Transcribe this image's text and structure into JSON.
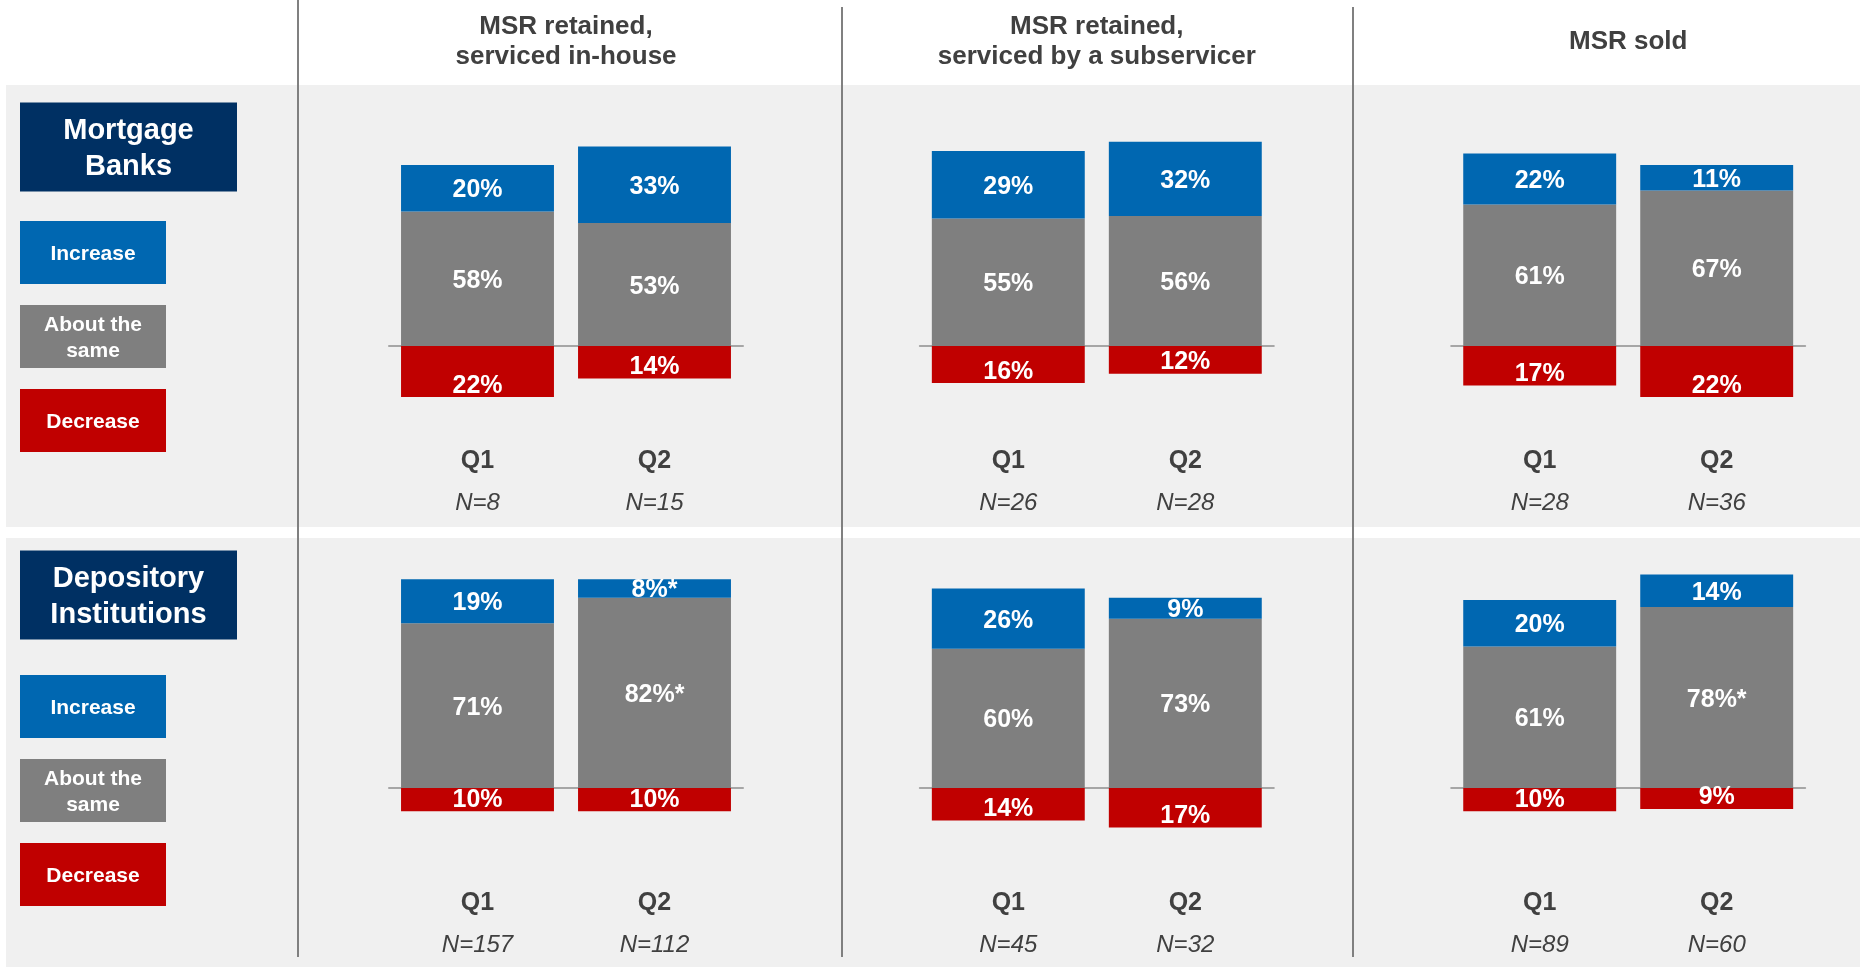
{
  "chart_data": [
    {
      "type": "bar",
      "title": "MSR retained,\nserviced in-house",
      "legend_title": "Mortgage Banks",
      "legend": "left",
      "stacked": true,
      "tick_labels": "x",
      "categories": [
        "Q1\nN=8",
        "Q2\nN=15"
      ],
      "series": [
        {
          "name": "Decrease",
          "color": "#c00000",
          "values": [
            -22,
            -14
          ]
        },
        {
          "name": "About the same",
          "color": "#7f7f7f",
          "values": [
            58,
            53
          ],
          "value_labels": [
            "58%",
            "53%"
          ]
        },
        {
          "name": "Increase",
          "color": "#0067b1",
          "values": [
            20,
            33
          ],
          "value_labels": [
            "20%",
            "33%"
          ]
        }
      ],
      "annotations": [
        {
          "text": "22%",
          "x": "Q1\nN=8",
          "y": -22
        },
        {
          "text": "14%",
          "x": "Q2\nN=15",
          "y": -14
        }
      ]
    },
    {
      "type": "bar",
      "title": "MSR retained,\nserviced by a subservicer",
      "stacked": true,
      "tick_labels": "x",
      "categories": [
        "Q1\nN=26",
        "Q2\nN=28"
      ],
      "series": [
        {
          "color": "#c00000",
          "values": [
            -16,
            -12
          ]
        },
        {
          "color": "#7f7f7f",
          "values": [
            55,
            56
          ],
          "value_labels": [
            "55%",
            "56%"
          ]
        },
        {
          "color": "#0067b1",
          "values": [
            29,
            32
          ],
          "value_labels": [
            "29%",
            "32%"
          ]
        }
      ],
      "annotations": [
        {
          "text": "16%",
          "x": "Q1\nN=26",
          "y": -16
        },
        {
          "text": "12%",
          "x": "Q2\nN=28",
          "y": -12
        }
      ]
    },
    {
      "type": "bar",
      "title": "MSR sold",
      "stacked": true,
      "tick_labels": "x",
      "categories": [
        "Q1\nN=28",
        "Q2\nN=36"
      ],
      "series": [
        {
          "color": "#c00000",
          "values": [
            -17,
            -22
          ]
        },
        {
          "color": "#7f7f7f",
          "values": [
            61,
            67
          ],
          "value_labels": [
            "61%",
            "67%"
          ]
        },
        {
          "color": "#0067b1",
          "values": [
            22,
            11
          ],
          "value_labels": [
            "22%",
            "11%"
          ]
        }
      ],
      "annotations": [
        {
          "text": "17%",
          "x": "Q1\nN=28",
          "y": -17
        },
        {
          "text": "22%",
          "x": "Q2\nN=36",
          "y": -22
        }
      ]
    },
    {
      "type": "bar",
      "legend_title": "Depository Institutions",
      "legend": "left",
      "stacked": true,
      "tick_labels": "x",
      "categories": [
        "Q1\nN=157",
        "Q2\nN=112"
      ],
      "series": [
        {
          "name": "Decrease",
          "color": "#c00000",
          "values": [
            -10,
            -10
          ]
        },
        {
          "name": "About the same",
          "color": "#7f7f7f",
          "values": [
            71,
            82
          ],
          "value_labels": [
            "71%",
            "82%*"
          ]
        },
        {
          "name": "Increase",
          "color": "#0067b1",
          "values": [
            19,
            8
          ],
          "value_labels": [
            "19%",
            "8%*"
          ]
        }
      ],
      "annotations": [
        {
          "text": "10%",
          "x": "Q1\nN=157",
          "y": -10
        },
        {
          "text": "10%",
          "x": "Q2\nN=112",
          "y": -10
        }
      ]
    },
    {
      "type": "bar",
      "stacked": true,
      "tick_labels": "x",
      "categories": [
        "Q1\nN=45",
        "Q2\nN=32"
      ],
      "series": [
        {
          "color": "#c00000",
          "values": [
            -14,
            -17
          ]
        },
        {
          "color": "#7f7f7f",
          "values": [
            60,
            73
          ],
          "value_labels": [
            "60%",
            "73%"
          ]
        },
        {
          "color": "#0067b1",
          "values": [
            26,
            9
          ],
          "value_labels": [
            "26%",
            "9%"
          ]
        }
      ],
      "annotations": [
        {
          "text": "14%",
          "x": "Q1\nN=45",
          "y": -14
        },
        {
          "text": "17%",
          "x": "Q2\nN=32",
          "y": -17
        }
      ]
    },
    {
      "type": "bar",
      "stacked": true,
      "tick_labels": "x",
      "categories": [
        "Q1\nN=89",
        "Q2\nN=60"
      ],
      "series": [
        {
          "color": "#c00000",
          "values": [
            -10,
            -9
          ]
        },
        {
          "color": "#7f7f7f",
          "values": [
            61,
            78
          ],
          "value_labels": [
            "61%",
            "78%*"
          ]
        },
        {
          "color": "#0067b1",
          "values": [
            20,
            14
          ],
          "value_labels": [
            "20%",
            "14%"
          ]
        }
      ],
      "annotations": [
        {
          "text": "10%",
          "x": "Q1\nN=89",
          "y": -10
        },
        {
          "text": "9%",
          "x": "Q2\nN=60",
          "y": -9
        }
      ]
    }
  ]
}
